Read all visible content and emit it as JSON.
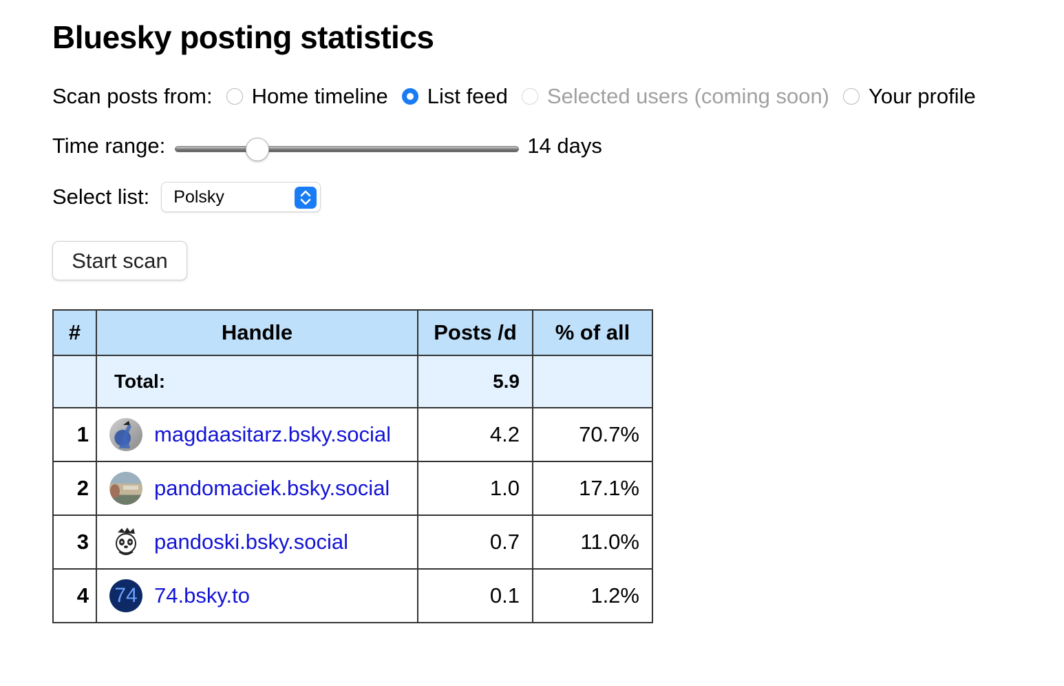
{
  "title": "Bluesky posting statistics",
  "scan": {
    "label": "Scan posts from:",
    "options": [
      {
        "label": "Home timeline",
        "checked": false,
        "disabled": false
      },
      {
        "label": "List feed",
        "checked": true,
        "disabled": false
      },
      {
        "label": "Selected users (coming soon)",
        "checked": false,
        "disabled": true
      },
      {
        "label": "Your profile",
        "checked": false,
        "disabled": false
      }
    ]
  },
  "time_range": {
    "label": "Time range:",
    "value_label": "14 days",
    "slider_fraction": 0.24
  },
  "select_list": {
    "label": "Select list:",
    "value": "Polsky"
  },
  "start_button": "Start scan",
  "table": {
    "headers": [
      "#",
      "Handle",
      "Posts /d",
      "% of all"
    ],
    "total": {
      "label": "Total:",
      "posts": "5.9"
    },
    "rows": [
      {
        "num": "1",
        "handle": "magdaasitarz.bsky.social",
        "posts": "4.2",
        "pct": "70.7%",
        "avatar": "photo-avatar"
      },
      {
        "num": "2",
        "handle": "pandomaciek.bsky.social",
        "posts": "1.0",
        "pct": "17.1%",
        "avatar": "photo-avatar"
      },
      {
        "num": "3",
        "handle": "pandoski.bsky.social",
        "posts": "0.7",
        "pct": "11.0%",
        "avatar": "panda-avatar"
      },
      {
        "num": "4",
        "handle": "74.bsky.to",
        "posts": "0.1",
        "pct": "1.2%",
        "avatar_text": "74"
      }
    ]
  },
  "colors": {
    "accent": "#1a7cf4",
    "header_bg": "#bfe0fb",
    "total_bg": "#e3f2fe",
    "link": "#1414d4"
  }
}
